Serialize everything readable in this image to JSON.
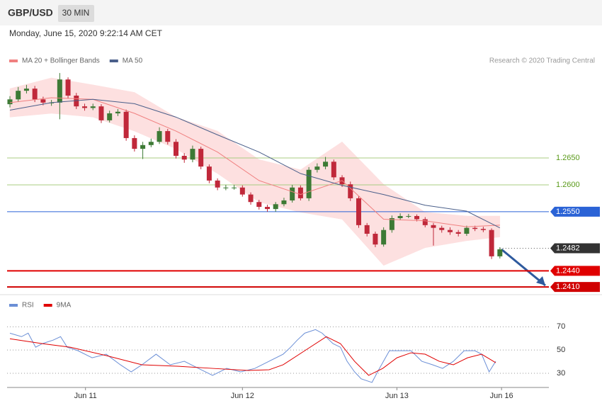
{
  "header": {
    "symbol": "GBP/USD",
    "timeframe": "30 MIN",
    "timestamp": "Monday, June 15, 2020 9:22:14 AM CET",
    "credit": "Research © 2020 Trading Central"
  },
  "chart_data": [
    {
      "type": "candlestick",
      "xlim": [
        -0.34,
        64.9
      ],
      "ylim": [
        1.2397,
        1.2849
      ],
      "up_color": "#3d7a35",
      "down_color": "#c0283a",
      "open": [
        1.275,
        1.2759,
        1.2775,
        1.2779,
        1.2759,
        1.2753,
        1.2753,
        1.2796,
        1.2766,
        1.2746,
        1.2743,
        1.2746,
        1.272,
        1.2733,
        1.2736,
        1.2687,
        1.2667,
        1.2674,
        1.268,
        1.27,
        1.268,
        1.2654,
        1.2647,
        1.2667,
        1.2634,
        1.2608,
        1.2595,
        1.2595,
        1.2595,
        1.2582,
        1.2568,
        1.2559,
        1.2555,
        1.2564,
        1.2571,
        1.2595,
        1.2575,
        1.2628,
        1.2634,
        1.2643,
        1.2614,
        1.2601,
        1.2575,
        1.2525,
        1.2509,
        1.2489,
        1.2516,
        1.2538,
        1.2542,
        1.2542,
        1.2536,
        1.2525,
        1.252,
        1.2516,
        1.2512,
        1.2509,
        1.252,
        1.2518,
        1.2516,
        1.2467
      ],
      "high": [
        1.2765,
        1.2782,
        1.2786,
        1.2784,
        1.2764,
        1.2758,
        1.2808,
        1.28,
        1.2771,
        1.2751,
        1.2751,
        1.275,
        1.2738,
        1.2741,
        1.274,
        1.2692,
        1.268,
        1.2686,
        1.2707,
        1.2704,
        1.2685,
        1.2659,
        1.2673,
        1.2671,
        1.2638,
        1.2612,
        1.26,
        1.26,
        1.2599,
        1.2586,
        1.2572,
        1.2563,
        1.2568,
        1.2576,
        1.26,
        1.2599,
        1.2633,
        1.264,
        1.2652,
        1.2647,
        1.2618,
        1.2606,
        1.2579,
        1.2529,
        1.2513,
        1.2521,
        1.2543,
        1.2547,
        1.2546,
        1.2545,
        1.254,
        1.2529,
        1.2524,
        1.2521,
        1.2516,
        1.2524,
        1.2524,
        1.2522,
        1.2519,
        1.2484
      ],
      "low": [
        1.2744,
        1.2754,
        1.277,
        1.2754,
        1.2748,
        1.2747,
        1.2722,
        1.2761,
        1.2741,
        1.2738,
        1.2739,
        1.2715,
        1.2716,
        1.2728,
        1.2682,
        1.2662,
        1.2648,
        1.267,
        1.2676,
        1.2675,
        1.2649,
        1.2641,
        1.2642,
        1.2629,
        1.2603,
        1.259,
        1.259,
        1.2591,
        1.2578,
        1.2563,
        1.2554,
        1.255,
        1.255,
        1.256,
        1.2567,
        1.2571,
        1.257,
        1.2623,
        1.2629,
        1.2609,
        1.2596,
        1.257,
        1.252,
        1.2504,
        1.2484,
        1.2485,
        1.2511,
        1.2534,
        1.2538,
        1.2532,
        1.2521,
        1.2487,
        1.2511,
        1.2507,
        1.2504,
        1.2505,
        1.2514,
        1.2512,
        1.2462,
        1.2463
      ],
      "close": [
        1.2759,
        1.2775,
        1.2779,
        1.2759,
        1.2753,
        1.2753,
        1.2796,
        1.2766,
        1.2746,
        1.2743,
        1.2746,
        1.272,
        1.2733,
        1.2736,
        1.2687,
        1.2667,
        1.2674,
        1.268,
        1.27,
        1.268,
        1.2654,
        1.2647,
        1.2667,
        1.2634,
        1.2608,
        1.2595,
        1.2595,
        1.2595,
        1.2582,
        1.2568,
        1.2559,
        1.2555,
        1.2564,
        1.2571,
        1.2595,
        1.2575,
        1.2628,
        1.2634,
        1.2643,
        1.2614,
        1.2601,
        1.2575,
        1.2525,
        1.2509,
        1.2489,
        1.2516,
        1.2538,
        1.2542,
        1.2542,
        1.2536,
        1.2525,
        1.252,
        1.2516,
        1.2512,
        1.2509,
        1.252,
        1.2518,
        1.2516,
        1.2467,
        1.248
      ],
      "series": [
        {
          "name": "MA 20 + Bollinger Bands",
          "color": "#f08080",
          "band_color": "#fde0e0",
          "x": [
            0,
            5,
            10,
            15,
            20,
            25,
            30,
            35,
            40,
            45,
            50,
            55,
            59
          ],
          "values": [
            1.2753,
            1.2762,
            1.2759,
            1.2733,
            1.27,
            1.2661,
            1.2608,
            1.2582,
            1.2608,
            1.2536,
            1.2533,
            1.2522,
            1.2525
          ],
          "upper": [
            1.2779,
            1.2799,
            1.2786,
            1.2772,
            1.2726,
            1.27,
            1.2647,
            1.2628,
            1.268,
            1.2601,
            1.2549,
            1.2542,
            1.2542
          ],
          "lower": [
            1.2726,
            1.2733,
            1.2726,
            1.27,
            1.2667,
            1.2621,
            1.2568,
            1.2549,
            1.2536,
            1.245,
            1.2483,
            1.2496,
            1.2503
          ]
        },
        {
          "name": "MA 50",
          "color": "#4a5f8a",
          "x": [
            0,
            5,
            10,
            15,
            20,
            25,
            30,
            35,
            40,
            45,
            50,
            55,
            59
          ],
          "values": [
            1.2739,
            1.2753,
            1.2759,
            1.2751,
            1.2726,
            1.2693,
            1.2661,
            1.2621,
            1.2599,
            1.2582,
            1.2562,
            1.2551,
            1.252
          ]
        }
      ],
      "yticks": [
        {
          "value": 1.265,
          "label": "1.2650"
        },
        {
          "value": 1.26,
          "label": "1.2600"
        },
        {
          "value": 1.255,
          "label": "1.2550"
        },
        {
          "value": 1.2482,
          "label": "1.2482"
        },
        {
          "value": 1.244,
          "label": "1.2440"
        },
        {
          "value": 1.241,
          "label": "1.2410"
        }
      ],
      "ytick_colors": [
        "#a8cc80",
        "#a8cc80",
        "#2b63d6",
        "#333333",
        "#e00000",
        "#d00000"
      ],
      "ytick_boxed": [
        false,
        false,
        true,
        true,
        true,
        true
      ],
      "ytick_line": [
        "solid",
        "solid",
        "solid",
        "dotted",
        "thick",
        "thick"
      ]
    },
    {
      "type": "line",
      "xlim": [
        -0.34,
        64.9
      ],
      "ylim": [
        19,
        83
      ],
      "yticks": [
        70,
        50,
        30
      ],
      "xticks": [
        {
          "value": 9.1,
          "label": "Jun 11"
        },
        {
          "value": 28.0,
          "label": "Jun 12"
        },
        {
          "value": 46.6,
          "label": "Jun 13"
        },
        {
          "value": 59.2,
          "label": "Jun 16"
        }
      ],
      "series": [
        {
          "name": "RSI",
          "color": "#6b8fd6",
          "x": [
            0,
            1.4,
            2.2,
            3.1,
            3.9,
            5.2,
            6.1,
            6.9,
            8.2,
            9.9,
            11.6,
            13.3,
            14.6,
            15.9,
            17.6,
            19.3,
            21.0,
            22.7,
            24.4,
            26.1,
            27.8,
            29.5,
            31.2,
            32.9,
            33.8,
            34.6,
            35.5,
            36.8,
            37.6,
            38.9,
            39.8,
            40.6,
            41.5,
            42.3,
            43.6,
            44.5,
            45.7,
            47.0,
            48.3,
            49.6,
            50.9,
            52.1,
            53.4,
            54.7,
            56.0,
            56.8,
            57.7,
            58.5
          ],
          "values": [
            64.5,
            61.5,
            64.5,
            52.4,
            55.5,
            58.5,
            61.5,
            52.4,
            49.4,
            43.3,
            46.4,
            37.3,
            31.2,
            37.3,
            46.4,
            37.3,
            40.3,
            34.2,
            28.2,
            34.2,
            31.2,
            34.2,
            40.3,
            46.4,
            52.4,
            58.5,
            64.5,
            67.6,
            64.5,
            55.5,
            52.4,
            40.3,
            31.2,
            25.2,
            22.1,
            34.2,
            49.4,
            49.4,
            49.4,
            40.3,
            37.3,
            34.2,
            40.3,
            49.4,
            49.4,
            46.4,
            31.2,
            40.3
          ]
        },
        {
          "name": "9MA",
          "color": "#e00000",
          "x": [
            0,
            3.9,
            7.3,
            11.6,
            15.9,
            20.1,
            24.4,
            28.7,
            31.2,
            32.9,
            35.5,
            38.1,
            39.8,
            41.5,
            43.2,
            44.9,
            46.6,
            48.3,
            50.0,
            51.7,
            53.4,
            55.1,
            56.8,
            58.5
          ],
          "values": [
            59.7,
            55.5,
            52.4,
            45.2,
            37.3,
            36.1,
            34.2,
            32.4,
            33.0,
            37.3,
            49.4,
            61.5,
            55.5,
            40.3,
            28.2,
            34.2,
            43.3,
            47.6,
            46.4,
            40.3,
            37.3,
            43.3,
            46.4,
            39.1
          ]
        }
      ]
    }
  ]
}
